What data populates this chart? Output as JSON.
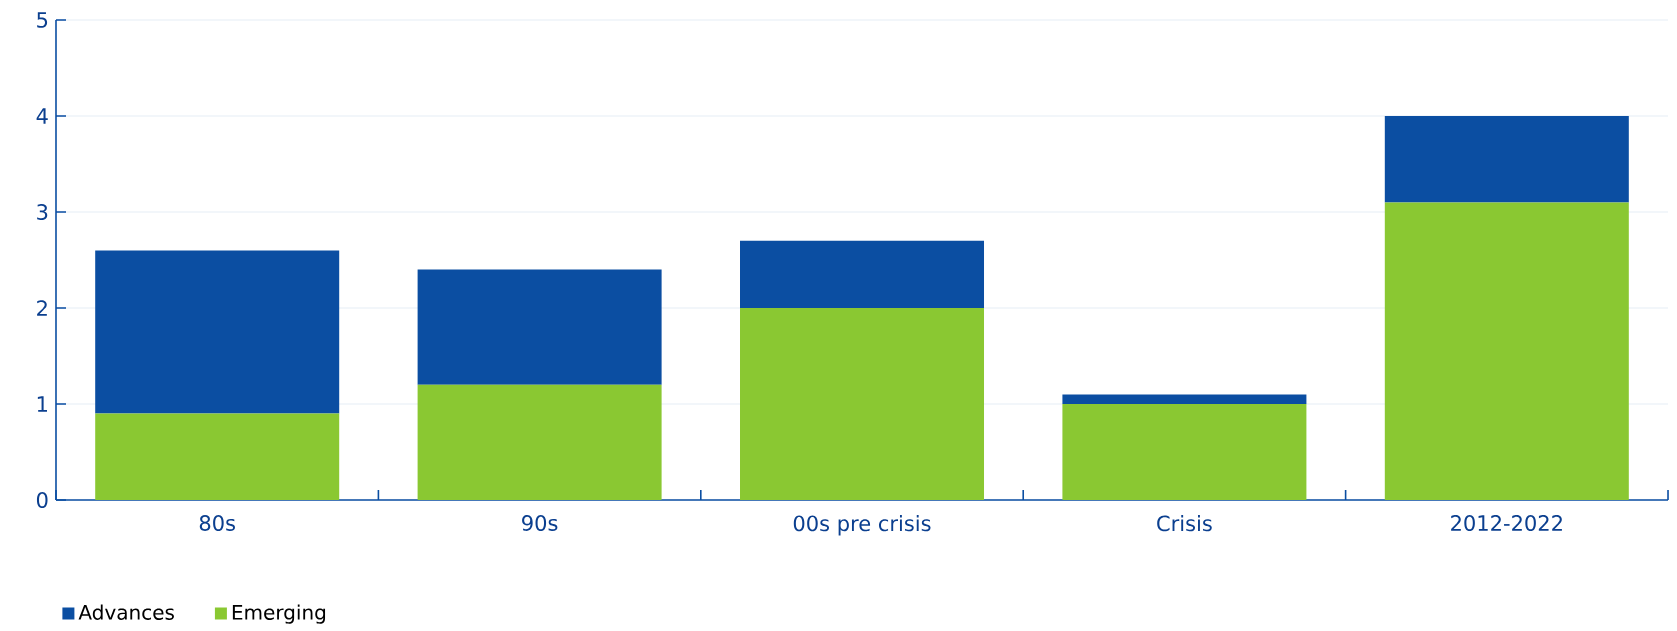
{
  "chart_data": {
    "type": "bar",
    "stacked": true,
    "categories": [
      "80s",
      "90s",
      "00s pre crisis",
      "Crisis",
      "2012-2022"
    ],
    "series": [
      {
        "name": "Emerging",
        "color": "#8ac832",
        "values": [
          0.9,
          1.2,
          2.0,
          1.0,
          3.1
        ]
      },
      {
        "name": "Advances",
        "color": "#0b4ea2",
        "values": [
          1.7,
          1.2,
          0.7,
          0.1,
          0.9
        ]
      }
    ],
    "ylim": [
      0,
      5
    ],
    "yticks": [
      0,
      1,
      2,
      3,
      4,
      5
    ],
    "grid": "y",
    "legend": "bottom left"
  }
}
